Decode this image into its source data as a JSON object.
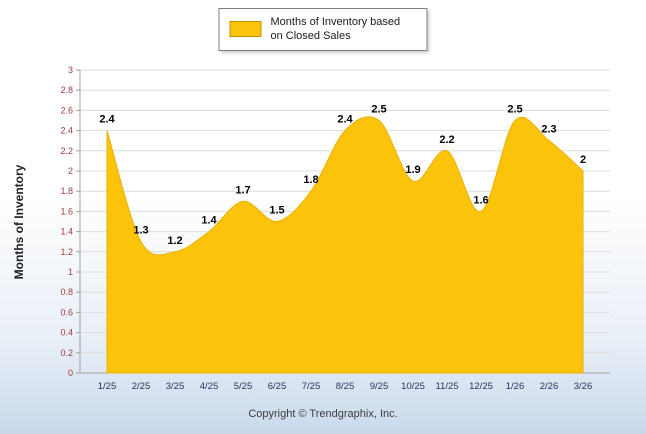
{
  "legend": {
    "label": "Months of Inventory based on Closed Sales"
  },
  "ylabel": "Months of Inventory",
  "footer": {
    "copyright": "Copyright © Trendgraphix, Inc."
  },
  "colors": {
    "area": "#FCC30B",
    "area_edge": "#EBB000",
    "grid": "#DCDCDC",
    "axis": "#A0A0A0",
    "y_tick_text": "#A03C3C",
    "x_tick_text": "#2F2F5F",
    "label_text": "#000000"
  },
  "chart_data": {
    "type": "area",
    "categories": [
      "1/25",
      "2/25",
      "3/25",
      "4/25",
      "5/25",
      "6/25",
      "7/25",
      "8/25",
      "9/25",
      "10/25",
      "11/25",
      "12/25",
      "1/26",
      "2/26",
      "3/26"
    ],
    "values": [
      2.4,
      1.3,
      1.2,
      1.4,
      1.7,
      1.5,
      1.8,
      2.4,
      2.5,
      1.9,
      2.2,
      1.6,
      2.5,
      2.3,
      2
    ],
    "title": "",
    "xlabel": "",
    "ylabel": "Months of Inventory",
    "ylim": [
      0,
      3
    ],
    "ytick_step": 0.2,
    "grid": true,
    "legend": "Months of Inventory based on Closed Sales",
    "legend_position": "top-center"
  }
}
